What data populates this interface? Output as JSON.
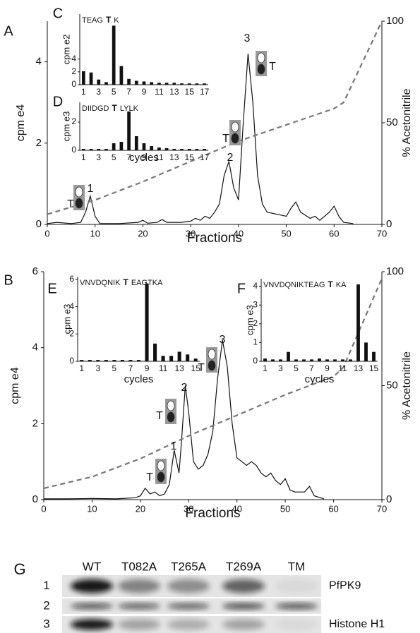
{
  "chart_data": [
    {
      "type": "line",
      "panel": "A",
      "x_label": "Fractions",
      "y_label": "cpm e4",
      "y2_label": "% Acetonitrile",
      "xlim": [
        0,
        70
      ],
      "xticks": [
        0,
        10,
        20,
        30,
        40,
        50,
        60,
        70
      ],
      "ylim": [
        0,
        5
      ],
      "yticks": [
        0,
        2,
        4
      ],
      "y2lim": [
        0,
        100
      ],
      "y2ticks": [
        0,
        50,
        100
      ],
      "annotations": [
        "1",
        "2",
        "3",
        "T"
      ],
      "series": [
        {
          "color": "#111111",
          "x": [
            0,
            2,
            5,
            7,
            8,
            9,
            10,
            11,
            15,
            19,
            20,
            21,
            23,
            24,
            25,
            28,
            30,
            31,
            32,
            33,
            34,
            35,
            36,
            37,
            38,
            39,
            40,
            41,
            42,
            43,
            44,
            45,
            46,
            48,
            50,
            51,
            52,
            53,
            55,
            56,
            57,
            59,
            60,
            61,
            62,
            64
          ],
          "values": [
            0.02,
            0.05,
            0.02,
            0.05,
            0.3,
            0.7,
            0.2,
            0.02,
            0.02,
            0.05,
            0.1,
            0.03,
            0.05,
            0.12,
            0.05,
            0.05,
            0.08,
            0.15,
            0.1,
            0.2,
            0.15,
            0.3,
            0.5,
            1.2,
            1.55,
            0.9,
            0.6,
            2.5,
            4.2,
            3.0,
            1.2,
            0.5,
            0.3,
            0.25,
            0.2,
            0.4,
            0.55,
            0.3,
            0.15,
            0.2,
            0.1,
            0.3,
            0.45,
            0.2,
            0.05,
            0.02
          ]
        },
        {
          "color": "#777777",
          "axis": "y2",
          "dashed": true,
          "x": [
            0,
            10,
            20,
            30,
            40,
            50,
            60,
            62,
            70
          ],
          "values": [
            5,
            12,
            21,
            31,
            41,
            49,
            57,
            60,
            100
          ]
        }
      ]
    },
    {
      "type": "bar",
      "panel": "C",
      "title": {
        "before": "TEAG",
        "site": "T",
        "after": "K"
      },
      "y_label": "cpm e2",
      "color": "#111111",
      "categories": [
        "1",
        null,
        "3",
        null,
        "5",
        null,
        "7",
        null,
        "9",
        null,
        "11",
        null,
        "13",
        null,
        "15",
        null,
        "17"
      ],
      "values": [
        2.1,
        1.9,
        0.8,
        0.4,
        9.2,
        2.9,
        0.9,
        0.6,
        0.5,
        0.4,
        0.3,
        0.3,
        0.3,
        0.2,
        0.2,
        0.2,
        0.2
      ],
      "ylim": [
        0,
        11
      ],
      "yticks": [
        0,
        2,
        4
      ]
    },
    {
      "type": "bar",
      "panel": "D",
      "title": {
        "before": "DIIDGD",
        "site": "T",
        "after": "LYLK"
      },
      "y_label": "cpm e3",
      "x_label": "cycles",
      "color": "#111111",
      "categories": [
        "1",
        null,
        "3",
        null,
        "5",
        null,
        "7",
        null,
        "9",
        null,
        "11",
        null,
        "13",
        null,
        "15",
        null,
        "17"
      ],
      "values": [
        0.1,
        0.1,
        0.1,
        0.1,
        0.5,
        0.6,
        2.75,
        1.0,
        0.5,
        0.3,
        0.2,
        0.15,
        0.1,
        0.1,
        0.1,
        0.1,
        0.1
      ],
      "ylim": [
        0,
        3.4
      ],
      "yticks": [
        0,
        2
      ]
    },
    {
      "type": "line",
      "panel": "B",
      "x_label": "Fractions",
      "y_label": "cpm e4",
      "y2_label": "% Acetonitrile",
      "xlim": [
        0,
        70
      ],
      "xticks": [
        0,
        10,
        20,
        30,
        40,
        50,
        60,
        70
      ],
      "ylim": [
        0,
        6
      ],
      "yticks": [
        0,
        2,
        4,
        6
      ],
      "y2lim": [
        0,
        100
      ],
      "y2ticks": [
        0,
        50,
        100
      ],
      "annotations": [
        "1",
        "2",
        "3",
        "T"
      ],
      "series": [
        {
          "color": "#111111",
          "x": [
            0,
            5,
            10,
            15,
            19,
            20,
            21,
            22,
            23,
            24,
            25,
            26,
            27,
            28,
            28.5,
            29.3,
            30,
            31,
            32,
            33,
            34,
            35,
            36,
            37,
            38,
            39,
            40,
            41,
            42,
            43,
            44,
            45,
            46,
            47,
            48,
            49,
            50,
            51,
            52,
            54,
            55,
            56,
            58
          ],
          "values": [
            0.02,
            0.02,
            0.03,
            0.02,
            0.05,
            0.1,
            0.3,
            0.15,
            0.2,
            0.1,
            0.15,
            0.4,
            1.3,
            0.7,
            1.5,
            3.0,
            2.3,
            1.0,
            0.8,
            0.9,
            1.2,
            1.8,
            3.2,
            4.2,
            3.5,
            2.0,
            1.1,
            1.0,
            0.9,
            1.0,
            0.9,
            0.7,
            0.6,
            0.7,
            0.5,
            0.4,
            0.55,
            0.25,
            0.2,
            0.2,
            0.35,
            0.1,
            0.02
          ]
        },
        {
          "color": "#777777",
          "axis": "y2",
          "dashed": true,
          "x": [
            0,
            10,
            20,
            30,
            40,
            50,
            60,
            62,
            70
          ],
          "values": [
            5,
            10,
            18,
            28,
            37,
            46,
            54,
            58,
            97
          ]
        }
      ]
    },
    {
      "type": "bar",
      "panel": "E",
      "title": {
        "before": "VNVDQNIK",
        "site": "T",
        "after": "EAGTKA"
      },
      "y_label": "cpm e3",
      "x_label": "cycles",
      "color": "#111111",
      "categories": [
        "1",
        null,
        "3",
        null,
        "5",
        null,
        "7",
        null,
        "9",
        null,
        "11",
        null,
        "13",
        null,
        "15"
      ],
      "values": [
        0.1,
        0.1,
        0.1,
        0.1,
        0.1,
        0.1,
        0.1,
        0.1,
        5.7,
        1.3,
        0.4,
        0.4,
        0.7,
        0.5,
        0.2
      ],
      "ylim": [
        0,
        6.2
      ],
      "yticks": [
        0,
        2,
        4,
        6
      ]
    },
    {
      "type": "bar",
      "panel": "F",
      "title": {
        "before": "VNVDQNIKTEAG",
        "site": "T",
        "after": "KA"
      },
      "y_label": "cpm e3",
      "x_label": "cycles",
      "color": "#111111",
      "categories": [
        "1",
        null,
        "3",
        null,
        "5",
        null,
        "7",
        null,
        "9",
        null,
        "11",
        null,
        "13",
        null,
        "15"
      ],
      "values": [
        0.15,
        0.1,
        0.1,
        0.5,
        0.1,
        0.1,
        0.1,
        0.15,
        0.1,
        0.1,
        0.1,
        0.1,
        4.1,
        1.0,
        0.5
      ],
      "ylim": [
        0,
        4.4
      ],
      "yticks": [
        0,
        1,
        2,
        3,
        4
      ]
    }
  ],
  "gel": {
    "panel": "G",
    "lanes": [
      "WT",
      "T082A",
      "T265A",
      "T269A",
      "TM"
    ],
    "rows": [
      {
        "number": "1",
        "label": "PfPK9"
      },
      {
        "number": "2"
      },
      {
        "number": "3",
        "label": "Histone H1"
      }
    ]
  }
}
